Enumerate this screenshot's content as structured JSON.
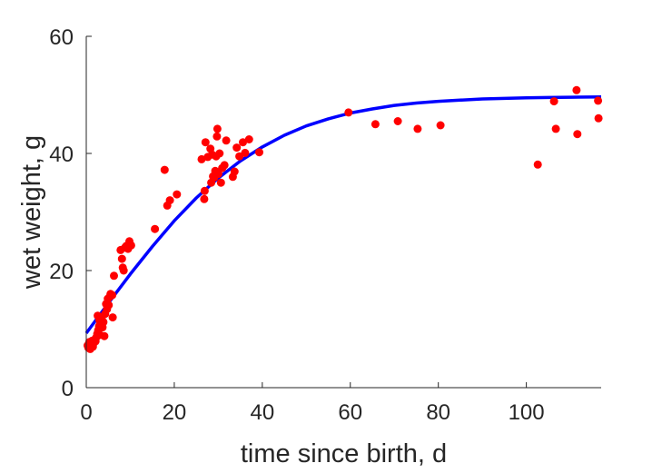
{
  "chart_data": {
    "type": "scatter",
    "xlabel": "time since birth, d",
    "ylabel": "wet weight, g",
    "xlim": [
      0,
      117
    ],
    "ylim": [
      0,
      60
    ],
    "xticks": [
      "0",
      "20",
      "40",
      "60",
      "80",
      "100"
    ],
    "yticks": [
      "0",
      "20",
      "40",
      "60"
    ],
    "grid": false,
    "box": "left-bottom",
    "colors": {
      "points": "#ff0000",
      "fit": "#0000ff",
      "axes": "#262626"
    },
    "series": [
      {
        "type": "scatter",
        "points": [
          [
            0.3,
            7.2
          ],
          [
            0.5,
            6.8
          ],
          [
            0.7,
            7.8
          ],
          [
            0.9,
            6.6
          ],
          [
            1.1,
            7.4
          ],
          [
            1.3,
            8.0
          ],
          [
            1.5,
            7.0
          ],
          [
            1.7,
            7.6
          ],
          [
            1.9,
            8.2
          ],
          [
            2.1,
            7.9
          ],
          [
            2.3,
            8.6
          ],
          [
            2.5,
            9.2
          ],
          [
            2.7,
            9.8
          ],
          [
            2.9,
            10.5
          ],
          [
            3.1,
            9.0
          ],
          [
            3.3,
            10.9
          ],
          [
            3.5,
            11.8
          ],
          [
            3.7,
            10.3
          ],
          [
            3.9,
            11.2
          ],
          [
            4.1,
            8.8
          ],
          [
            4.3,
            12.6
          ],
          [
            4.5,
            14.3
          ],
          [
            4.7,
            13.4
          ],
          [
            4.9,
            15.2
          ],
          [
            5.1,
            14.1
          ],
          [
            5.3,
            15.5
          ],
          [
            5.5,
            16.0
          ],
          [
            5.9,
            15.8
          ],
          [
            6.0,
            12.0
          ],
          [
            6.3,
            19.1
          ],
          [
            2.6,
            12.3
          ],
          [
            3.0,
            11.5
          ],
          [
            3.4,
            12.0
          ],
          [
            7.8,
            23.5
          ],
          [
            8.1,
            22.0
          ],
          [
            8.3,
            20.5
          ],
          [
            8.5,
            20.0
          ],
          [
            8.8,
            23.9
          ],
          [
            9.1,
            24.2
          ],
          [
            9.5,
            23.7
          ],
          [
            9.8,
            25.0
          ],
          [
            10.2,
            24.3
          ],
          [
            15.6,
            27.1
          ],
          [
            17.8,
            37.2
          ],
          [
            18.4,
            31.1
          ],
          [
            19.0,
            32.0
          ],
          [
            20.6,
            33.0
          ],
          [
            26.2,
            39.0
          ],
          [
            26.8,
            32.2
          ],
          [
            26.9,
            33.6
          ],
          [
            27.1,
            41.9
          ],
          [
            27.6,
            39.4
          ],
          [
            28.2,
            40.8
          ],
          [
            28.4,
            35.0
          ],
          [
            28.6,
            39.8
          ],
          [
            28.8,
            36.1
          ],
          [
            29.1,
            35.9
          ],
          [
            29.3,
            37.0
          ],
          [
            29.5,
            39.5
          ],
          [
            29.7,
            42.9
          ],
          [
            29.8,
            44.2
          ],
          [
            30.0,
            36.5
          ],
          [
            30.3,
            40.0
          ],
          [
            30.6,
            35.0
          ],
          [
            30.9,
            37.5
          ],
          [
            31.4,
            38.0
          ],
          [
            31.8,
            42.2
          ],
          [
            33.3,
            36.0
          ],
          [
            33.7,
            36.9
          ],
          [
            34.2,
            41.0
          ],
          [
            34.8,
            39.5
          ],
          [
            35.6,
            41.9
          ],
          [
            36.1,
            40.1
          ],
          [
            37.0,
            42.4
          ],
          [
            39.3,
            40.2
          ],
          [
            59.6,
            47.0
          ],
          [
            65.7,
            45.0
          ],
          [
            70.8,
            45.5
          ],
          [
            75.3,
            44.2
          ],
          [
            80.5,
            44.8
          ],
          [
            102.6,
            38.1
          ],
          [
            106.3,
            48.9
          ],
          [
            106.7,
            44.2
          ],
          [
            111.4,
            50.8
          ],
          [
            111.6,
            43.3
          ],
          [
            116.3,
            49.0
          ],
          [
            116.4,
            46.0
          ]
        ]
      },
      {
        "type": "line",
        "points": [
          [
            0,
            9.3
          ],
          [
            5,
            14.4
          ],
          [
            10,
            19.4
          ],
          [
            15,
            24.1
          ],
          [
            20,
            28.5
          ],
          [
            25,
            32.4
          ],
          [
            30,
            35.8
          ],
          [
            35,
            38.7
          ],
          [
            40,
            41.1
          ],
          [
            45,
            43.1
          ],
          [
            50,
            44.7
          ],
          [
            55,
            45.9
          ],
          [
            60,
            46.9
          ],
          [
            65,
            47.6
          ],
          [
            70,
            48.2
          ],
          [
            75,
            48.6
          ],
          [
            80,
            48.9
          ],
          [
            85,
            49.1
          ],
          [
            90,
            49.3
          ],
          [
            95,
            49.4
          ],
          [
            100,
            49.5
          ],
          [
            105,
            49.55
          ],
          [
            110,
            49.6
          ],
          [
            117,
            49.65
          ]
        ]
      }
    ]
  }
}
